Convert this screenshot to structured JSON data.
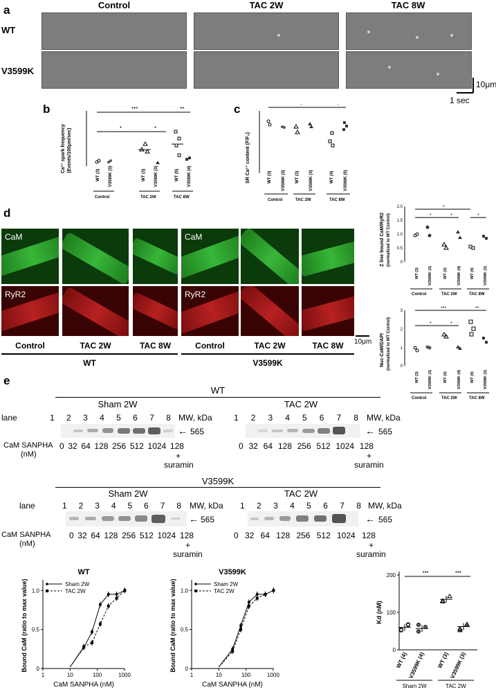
{
  "panel_a": {
    "letter": "a",
    "columns": [
      "Control",
      "TAC 2W",
      "TAC 8W"
    ],
    "rows": [
      "WT",
      "V3599K"
    ],
    "scale_y": "10μm",
    "scale_x": "1 sec"
  },
  "panel_b": {
    "letter": "b",
    "ylabel_line1": "Ca²⁺ spark frequency",
    "ylabel_line2": "(Events/100μm/sec)",
    "groups": [
      "WT (3)",
      "V3599K (3)",
      "WT (3)",
      "V3599K (3)",
      "WT (5)",
      "V3599K (4)"
    ],
    "conditions": [
      "Control",
      "TAC 2W",
      "TAC 8W"
    ],
    "sig": [
      "*",
      "*",
      "***",
      "**"
    ]
  },
  "panel_c": {
    "letter": "c",
    "ylabel": "SR Ca²⁺ content (F/F₀)",
    "groups": [
      "WT (3)",
      "V3599K (3)",
      "WT (3)",
      "V3599K (3)",
      "WT (4)",
      "V3599K (5)"
    ],
    "conditions": [
      "Control",
      "TAC 2W",
      "TAC 8W"
    ],
    "sig": [
      "*",
      "*"
    ]
  },
  "panel_d": {
    "letter": "d",
    "cam_label": "CaM",
    "ryr_label": "RyR2",
    "columns": [
      "Control",
      "TAC 2W",
      "TAC 8W"
    ],
    "group_wt": "WT",
    "group_mut": "V3599K",
    "scale": "10μm",
    "chart1": {
      "ylabel_line1": "Z line bound CaM/RyR2",
      "ylabel_line2": "(normalized to WT Control)",
      "groups": [
        "WT (3)",
        "V3599K (3)",
        "WT (3)",
        "V3599K (4)",
        "WT (4)",
        "V3599K (3)"
      ],
      "conditions": [
        "Control",
        "TAC 2W",
        "TAC 8W"
      ],
      "sig": [
        "*",
        "*",
        "*",
        "*"
      ]
    },
    "chart2": {
      "ylabel_line1": "Nuc-CaM/DAPI",
      "ylabel_line2": "(normalized to WT Control)",
      "groups": [
        "WT (3)",
        "V3599K (3)",
        "WT (3)",
        "V3599K (4)",
        "WT (4)",
        "V3599K (3)"
      ],
      "conditions": [
        "Control",
        "TAC 2W",
        "TAC 8W"
      ],
      "sig": [
        "***",
        "**",
        "*",
        "*"
      ]
    }
  },
  "panel_e": {
    "letter": "e",
    "wt_title": "WT",
    "mut_title": "V3599K",
    "sham": "Sham 2W",
    "tac": "TAC 2W",
    "lane_label": "lane",
    "lanes": [
      "1",
      "2",
      "3",
      "4",
      "5",
      "6",
      "7",
      "8"
    ],
    "mw_label": "MW, kDa",
    "band_mw": "565",
    "cam_label_line1": "CaM SANPHA",
    "cam_label_line2": "(nM)",
    "concentrations": [
      "0",
      "32",
      "64",
      "128",
      "256",
      "512",
      "1024",
      "128"
    ],
    "suramin_plus": "+",
    "suramin": "suramin"
  },
  "chart_data": [
    {
      "type": "scatter",
      "title": "",
      "ylabel": "Ca²⁺ spark frequency (Events/100μm/sec)",
      "categories": [
        "WT (3)",
        "V3599K (3)",
        "WT (3)",
        "V3599K (3)",
        "WT (5)",
        "V3599K (4)"
      ],
      "means": [
        0.25,
        0.2,
        2.0,
        0.2,
        3.3,
        0.7
      ],
      "ylim": [
        0,
        6
      ]
    },
    {
      "type": "scatter",
      "title": "",
      "ylabel": "SR Ca²⁺ content (F/F₀)",
      "categories": [
        "WT (3)",
        "V3599K (3)",
        "WT (3)",
        "V3599K (3)",
        "WT (4)",
        "V3599K (5)"
      ],
      "means": [
        4.6,
        4.1,
        4.1,
        4.4,
        3.5,
        4.6
      ],
      "ylim": [
        0,
        6
      ]
    },
    {
      "type": "scatter",
      "title": "",
      "ylabel": "Z line bound CaM/RyR2 (normalized to WT Control)",
      "categories": [
        "WT (3)",
        "V3599K (3)",
        "WT (3)",
        "V3599K (4)",
        "WT (4)",
        "V3599K (3)"
      ],
      "means": [
        1.0,
        1.17,
        0.57,
        1.05,
        0.55,
        0.95
      ],
      "ylim": [
        0,
        2.0
      ],
      "yticks": [
        "0",
        "0.5",
        "1.0",
        "1.5",
        "2.0"
      ]
    },
    {
      "type": "scatter",
      "title": "",
      "ylabel": "Nuc-CaM/DAPI (normalized to WT Control)",
      "categories": [
        "WT (3)",
        "V3599K (3)",
        "WT (3)",
        "V3599K (4)",
        "WT (4)",
        "V3599K (3)"
      ],
      "means": [
        1.0,
        1.05,
        1.7,
        1.08,
        2.25,
        1.45
      ],
      "ylim": [
        0,
        3
      ],
      "yticks": [
        "0",
        "1",
        "2",
        "3"
      ]
    },
    {
      "type": "line",
      "title": "WT",
      "xlabel": "CaM SANPHA (nM)",
      "ylabel": "Bound CaM (ratio to max value)",
      "xscale": "log",
      "xlim": [
        1,
        1000
      ],
      "ylim": [
        0,
        1.1
      ],
      "xticks": [
        "1",
        "10",
        "100",
        "1000"
      ],
      "yticks": [
        "0",
        "0.5",
        "1.0"
      ],
      "series": [
        {
          "name": "Sham 2W",
          "x": [
            32,
            64,
            128,
            256,
            512,
            1024
          ],
          "y": [
            0.27,
            0.47,
            0.82,
            0.95,
            0.95,
            1.0
          ]
        },
        {
          "name": "TAC 2W",
          "x": [
            32,
            64,
            128,
            256,
            512,
            1024
          ],
          "y": [
            0.28,
            0.33,
            0.57,
            0.8,
            0.9,
            1.0
          ]
        }
      ]
    },
    {
      "type": "line",
      "title": "V3599K",
      "xlabel": "CaM SANPHA (nM)",
      "ylabel": "Bound CaM (ratio to max value)",
      "xscale": "log",
      "xlim": [
        1,
        1000
      ],
      "ylim": [
        0,
        1.1
      ],
      "xticks": [
        "1",
        "10",
        "100",
        "1000"
      ],
      "yticks": [
        "0",
        "0.5",
        "1.0"
      ],
      "series": [
        {
          "name": "Sham 2W",
          "x": [
            32,
            64,
            128,
            256,
            512,
            1024
          ],
          "y": [
            0.25,
            0.55,
            0.85,
            0.95,
            0.95,
            1.0
          ]
        },
        {
          "name": "TAC 2W",
          "x": [
            32,
            64,
            128,
            256,
            512,
            1024
          ],
          "y": [
            0.22,
            0.5,
            0.8,
            0.9,
            0.95,
            1.0
          ]
        }
      ]
    },
    {
      "type": "scatter",
      "title": "",
      "ylabel": "Kd (nM)",
      "categories": [
        "WT (4)",
        "V3599K (4)",
        "WT (3)",
        "V3599K (3)"
      ],
      "conditions": [
        "Sham 2W",
        "TAC 2W"
      ],
      "means": [
        60,
        57,
        135,
        62
      ],
      "ylim": [
        0,
        200
      ],
      "yticks": [
        "0",
        "100",
        "200"
      ],
      "sig": [
        "***",
        "***"
      ]
    }
  ]
}
